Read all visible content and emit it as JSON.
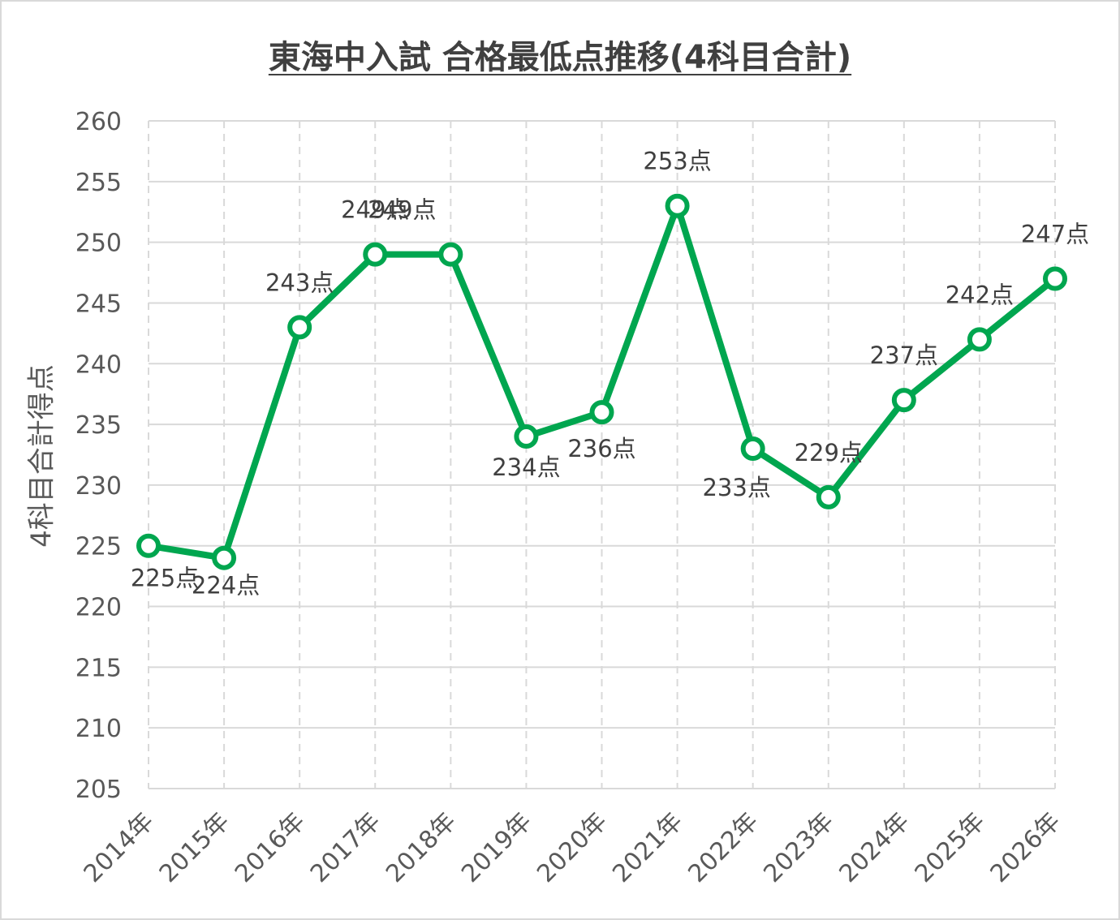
{
  "chart_data": {
    "type": "line",
    "title": "東海中入試 合格最低点推移(4科目合計)",
    "xlabel": "",
    "ylabel": "4科目合計得点",
    "categories": [
      "2014年",
      "2015年",
      "2016年",
      "2017年",
      "2018年",
      "2019年",
      "2020年",
      "2021年",
      "2022年",
      "2023年",
      "2024年",
      "2025年",
      "2026年"
    ],
    "series": [
      {
        "values": [
          225,
          224,
          243,
          249,
          249,
          234,
          236,
          253,
          233,
          229,
          237,
          242,
          247
        ],
        "data_labels": [
          "225点",
          "224点",
          "243点",
          "249点",
          "249点",
          "234点",
          "236点",
          "253点",
          "233点",
          "229点",
          "237点",
          "242点",
          "247点"
        ]
      }
    ],
    "ylim": [
      205,
      260
    ],
    "y_ticks": [
      "205",
      "210",
      "215",
      "220",
      "225",
      "230",
      "235",
      "240",
      "245",
      "250",
      "255",
      "260"
    ],
    "grid": "horizontal solid, vertical dashed",
    "legend": "none",
    "colors": {
      "line": "#00a64f",
      "marker_fill": "#ffffff",
      "grid": "#d9d9d9",
      "text": "#595959"
    }
  }
}
